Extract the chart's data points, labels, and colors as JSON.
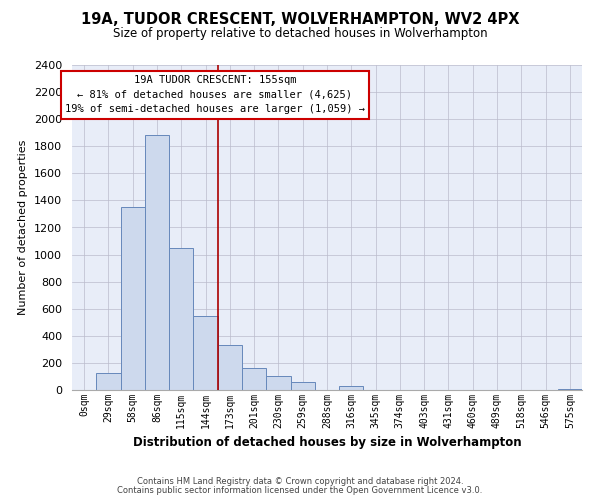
{
  "title": "19A, TUDOR CRESCENT, WOLVERHAMPTON, WV2 4PX",
  "subtitle": "Size of property relative to detached houses in Wolverhampton",
  "xlabel": "Distribution of detached houses by size in Wolverhampton",
  "ylabel": "Number of detached properties",
  "bar_labels": [
    "0sqm",
    "29sqm",
    "58sqm",
    "86sqm",
    "115sqm",
    "144sqm",
    "173sqm",
    "201sqm",
    "230sqm",
    "259sqm",
    "288sqm",
    "316sqm",
    "345sqm",
    "374sqm",
    "403sqm",
    "431sqm",
    "460sqm",
    "489sqm",
    "518sqm",
    "546sqm",
    "575sqm"
  ],
  "bar_values": [
    0,
    125,
    1350,
    1880,
    1050,
    550,
    335,
    160,
    105,
    60,
    0,
    30,
    0,
    0,
    0,
    0,
    0,
    0,
    0,
    0,
    10
  ],
  "bar_color": "#cdd9ed",
  "bar_edge_color": "#6688bb",
  "vline_x": 5.5,
  "vline_color": "#aa0000",
  "ylim": [
    0,
    2400
  ],
  "yticks": [
    0,
    200,
    400,
    600,
    800,
    1000,
    1200,
    1400,
    1600,
    1800,
    2000,
    2200,
    2400
  ],
  "annotation_title": "19A TUDOR CRESCENT: 155sqm",
  "annotation_line1": "← 81% of detached houses are smaller (4,625)",
  "annotation_line2": "19% of semi-detached houses are larger (1,059) →",
  "annotation_box_color": "#ffffff",
  "annotation_box_edge": "#cc0000",
  "footer1": "Contains HM Land Registry data © Crown copyright and database right 2024.",
  "footer2": "Contains public sector information licensed under the Open Government Licence v3.0.",
  "bg_color": "#ffffff",
  "plot_bg_color": "#e8edf8"
}
